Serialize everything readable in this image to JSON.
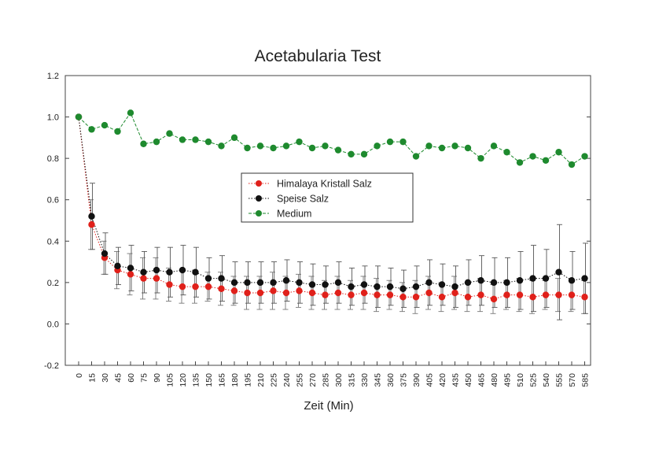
{
  "chart_data": {
    "type": "line",
    "title": "Acetabularia Test",
    "xlabel": "Zeit (Min)",
    "ylabel": "",
    "ylim": [
      -0.2,
      1.2
    ],
    "yticks": [
      "-0.2",
      "0.0",
      "0.2",
      "0.4",
      "0.6",
      "0.8",
      "1.0",
      "1.2"
    ],
    "x": [
      0,
      15,
      30,
      45,
      60,
      75,
      90,
      105,
      120,
      135,
      150,
      165,
      180,
      195,
      210,
      225,
      240,
      255,
      270,
      285,
      300,
      315,
      330,
      345,
      360,
      375,
      390,
      405,
      420,
      435,
      450,
      465,
      480,
      495,
      510,
      525,
      540,
      555,
      570,
      585
    ],
    "xticks": [
      "0",
      "15",
      "30",
      "45",
      "60",
      "75",
      "90",
      "105",
      "120",
      "135",
      "150",
      "165",
      "180",
      "195",
      "210",
      "225",
      "240",
      "255",
      "270",
      "285",
      "300",
      "315",
      "330",
      "345",
      "360",
      "375",
      "390",
      "405",
      "420",
      "435",
      "450",
      "465",
      "480",
      "495",
      "510",
      "525",
      "540",
      "555",
      "570",
      "585"
    ],
    "legend_position": "center",
    "grid": false,
    "series": [
      {
        "name": "Himalaya Kristall Salz",
        "color": "#e0201a",
        "line": "dotted",
        "values": [
          1.0,
          0.48,
          0.32,
          0.26,
          0.24,
          0.22,
          0.22,
          0.19,
          0.18,
          0.18,
          0.18,
          0.17,
          0.16,
          0.15,
          0.15,
          0.16,
          0.15,
          0.16,
          0.15,
          0.14,
          0.15,
          0.14,
          0.15,
          0.14,
          0.14,
          0.13,
          0.13,
          0.15,
          0.13,
          0.15,
          0.13,
          0.14,
          0.12,
          0.14,
          0.14,
          0.13,
          0.14,
          0.14,
          0.14,
          0.13
        ],
        "errors": [
          0.0,
          0.12,
          0.08,
          0.09,
          0.1,
          0.1,
          0.1,
          0.08,
          0.08,
          0.08,
          0.07,
          0.08,
          0.07,
          0.08,
          0.08,
          0.09,
          0.08,
          0.08,
          0.08,
          0.07,
          0.08,
          0.07,
          0.08,
          0.08,
          0.07,
          0.07,
          0.08,
          0.08,
          0.07,
          0.08,
          0.07,
          0.08,
          0.07,
          0.07,
          0.08,
          0.08,
          0.07,
          0.08,
          0.08,
          0.08
        ]
      },
      {
        "name": "Speise Salz",
        "color": "#111111",
        "line": "dotted",
        "values": [
          1.0,
          0.52,
          0.34,
          0.28,
          0.27,
          0.25,
          0.26,
          0.25,
          0.26,
          0.25,
          0.22,
          0.22,
          0.2,
          0.2,
          0.2,
          0.2,
          0.21,
          0.2,
          0.19,
          0.19,
          0.2,
          0.18,
          0.19,
          0.18,
          0.18,
          0.17,
          0.18,
          0.2,
          0.19,
          0.18,
          0.2,
          0.21,
          0.2,
          0.2,
          0.21,
          0.22,
          0.22,
          0.25,
          0.21,
          0.22
        ],
        "errors": [
          0.0,
          0.16,
          0.1,
          0.09,
          0.11,
          0.1,
          0.11,
          0.12,
          0.12,
          0.12,
          0.1,
          0.11,
          0.1,
          0.1,
          0.1,
          0.1,
          0.1,
          0.1,
          0.1,
          0.09,
          0.1,
          0.09,
          0.09,
          0.1,
          0.09,
          0.09,
          0.1,
          0.11,
          0.1,
          0.1,
          0.11,
          0.12,
          0.12,
          0.12,
          0.14,
          0.16,
          0.14,
          0.23,
          0.14,
          0.17
        ]
      },
      {
        "name": "Medium",
        "color": "#1e8a2e",
        "line": "dashed",
        "values": [
          1.0,
          0.94,
          0.96,
          0.93,
          1.02,
          0.87,
          0.88,
          0.92,
          0.89,
          0.89,
          0.88,
          0.86,
          0.9,
          0.85,
          0.86,
          0.85,
          0.86,
          0.88,
          0.85,
          0.86,
          0.84,
          0.82,
          0.82,
          0.86,
          0.88,
          0.88,
          0.81,
          0.86,
          0.85,
          0.86,
          0.85,
          0.8,
          0.86,
          0.83,
          0.78,
          0.81,
          0.79,
          0.83,
          0.77,
          0.81
        ]
      }
    ]
  }
}
